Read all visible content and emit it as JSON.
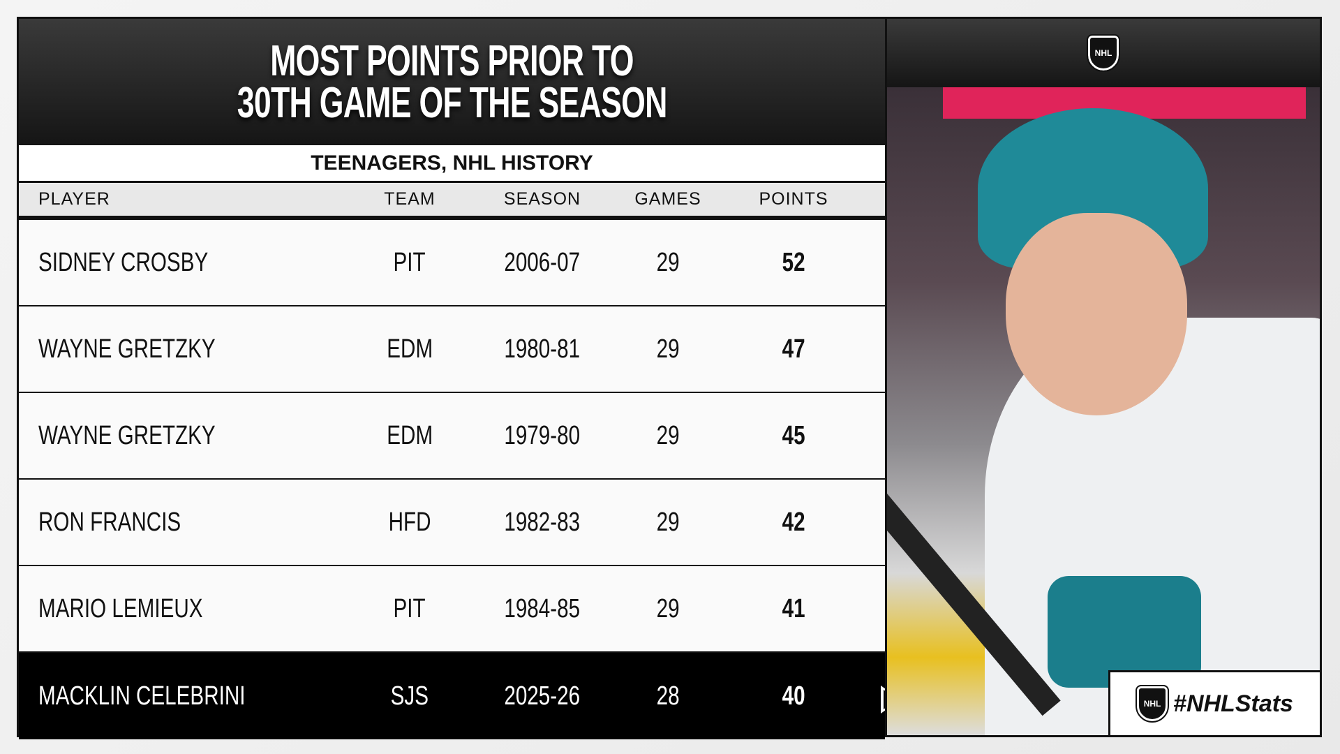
{
  "title_lines": [
    "MOST POINTS PRIOR TO",
    "30TH GAME OF THE SEASON"
  ],
  "subtitle": "TEENAGERS, NHL HISTORY",
  "columns": [
    "PLAYER",
    "TEAM",
    "SEASON",
    "GAMES",
    "POINTS"
  ],
  "rows": [
    [
      "SIDNEY CROSBY",
      "PIT",
      "2006-07",
      "29",
      "52"
    ],
    [
      "WAYNE GRETZKY",
      "EDM",
      "1980-81",
      "29",
      "47"
    ],
    [
      "WAYNE GRETZKY",
      "EDM",
      "1979-80",
      "29",
      "45"
    ],
    [
      "RON FRANCIS",
      "HFD",
      "1982-83",
      "29",
      "42"
    ],
    [
      "MARIO LEMIEUX",
      "PIT",
      "1984-85",
      "29",
      "41"
    ],
    [
      "MACKLIN CELEBRINI",
      "SJS",
      "2025-26",
      "28",
      "40"
    ]
  ],
  "highlight_row": 5,
  "logo_text": "NHL",
  "hashtag": "#NHLStats"
}
